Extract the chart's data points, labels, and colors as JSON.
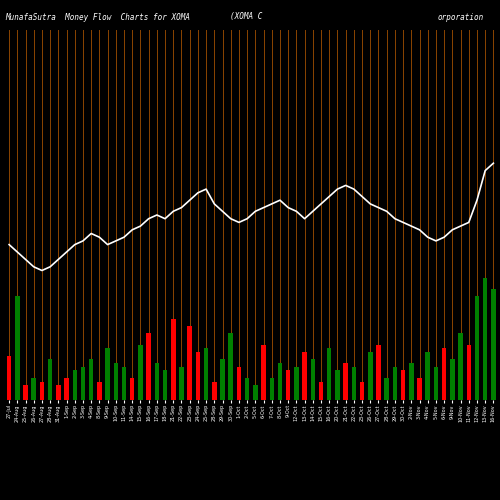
{
  "title_left": "MunafaSutra  Money Flow  Charts for XOMA",
  "title_center": "(XOMA C",
  "title_right": "orporation",
  "background_color": "#000000",
  "vertical_line_color": "#8B4500",
  "line_color": "#ffffff",
  "n_bars": 60,
  "bar_colors": [
    "red",
    "green",
    "red",
    "green",
    "red",
    "green",
    "red",
    "red",
    "green",
    "green",
    "green",
    "red",
    "green",
    "green",
    "green",
    "red",
    "green",
    "red",
    "green",
    "green",
    "red",
    "green",
    "red",
    "red",
    "green",
    "red",
    "green",
    "green",
    "red",
    "green",
    "green",
    "red",
    "green",
    "green",
    "red",
    "green",
    "red",
    "green",
    "red",
    "green",
    "green",
    "red",
    "green",
    "red",
    "green",
    "red",
    "green",
    "green",
    "red",
    "green",
    "red",
    "green",
    "green",
    "red",
    "green",
    "green",
    "red",
    "green",
    "green",
    "green"
  ],
  "bar_heights": [
    12,
    28,
    4,
    6,
    5,
    11,
    4,
    6,
    8,
    9,
    11,
    5,
    14,
    10,
    9,
    6,
    15,
    18,
    10,
    8,
    22,
    9,
    20,
    13,
    14,
    5,
    11,
    18,
    9,
    6,
    4,
    15,
    6,
    10,
    8,
    9,
    13,
    11,
    5,
    14,
    8,
    10,
    9,
    5,
    13,
    15,
    6,
    9,
    8,
    10,
    6,
    13,
    9,
    14,
    11,
    18,
    15,
    28,
    33,
    30
  ],
  "line_values": [
    42,
    40,
    38,
    36,
    35,
    36,
    38,
    40,
    42,
    43,
    45,
    44,
    42,
    43,
    44,
    46,
    47,
    49,
    50,
    49,
    51,
    52,
    54,
    56,
    57,
    53,
    51,
    49,
    48,
    49,
    51,
    52,
    53,
    54,
    52,
    51,
    49,
    51,
    53,
    55,
    57,
    58,
    57,
    55,
    53,
    52,
    51,
    49,
    48,
    47,
    46,
    44,
    43,
    44,
    46,
    47,
    48,
    54,
    62,
    64
  ],
  "x_labels": [
    "27-Jul",
    "24-Aug",
    "25-Aug",
    "26-Aug",
    "27-Aug",
    "28-Aug",
    "31-Aug",
    "1-Sep",
    "2-Sep",
    "3-Sep",
    "4-Sep",
    "8-Sep",
    "9-Sep",
    "10-Sep",
    "11-Sep",
    "14-Sep",
    "15-Sep",
    "16-Sep",
    "17-Sep",
    "18-Sep",
    "21-Sep",
    "22-Sep",
    "23-Sep",
    "24-Sep",
    "25-Sep",
    "28-Sep",
    "29-Sep",
    "30-Sep",
    "1-Oct",
    "2-Oct",
    "5-Oct",
    "6-Oct",
    "7-Oct",
    "8-Oct",
    "9-Oct",
    "12-Oct",
    "13-Oct",
    "14-Oct",
    "15-Oct",
    "16-Oct",
    "20-Oct",
    "21-Oct",
    "22-Oct",
    "23-Oct",
    "26-Oct",
    "27-Oct",
    "28-Oct",
    "29-Oct",
    "30-Oct",
    "2-Nov",
    "3-Nov",
    "4-Nov",
    "5-Nov",
    "6-Nov",
    "9-Nov",
    "10-Nov",
    "11-Nov",
    "12-Nov",
    "13-Nov",
    "16-Nov"
  ],
  "title_fontsize": 5.5,
  "label_fontsize": 3.5,
  "ylim_min": 0,
  "ylim_max": 100,
  "bar_scale": 1.0
}
